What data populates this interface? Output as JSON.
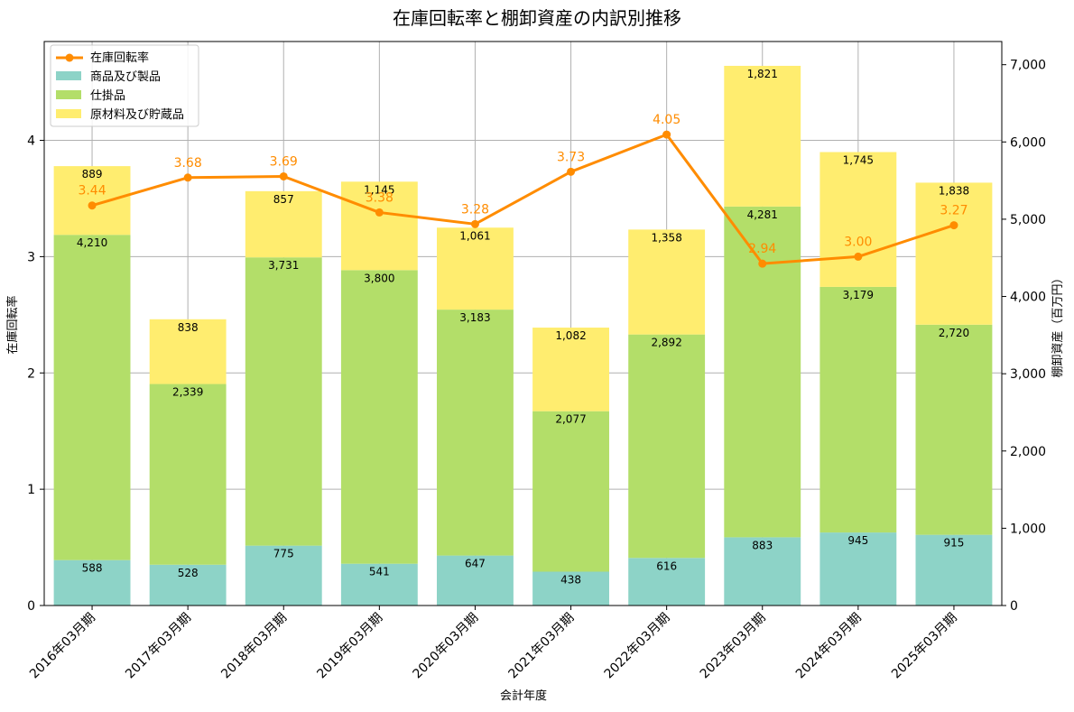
{
  "chart_data": {
    "type": "bar",
    "title": "在庫回転率と棚卸資産の内訳別推移",
    "xlabel": "会計年度",
    "ylabel_left": "在庫回転率",
    "ylabel_right": "棚卸資産（百万円）",
    "ylim_left": [
      0,
      4.85
    ],
    "ylim_right": [
      0,
      7300
    ],
    "yticks_left": [
      0,
      1,
      2,
      3,
      4
    ],
    "yticks_right": [
      0,
      1000,
      2000,
      3000,
      4000,
      5000,
      6000,
      7000
    ],
    "ytick_labels_right": [
      "0",
      "1,000",
      "2,000",
      "3,000",
      "4,000",
      "5,000",
      "6,000",
      "7,000"
    ],
    "categories": [
      "2016年03月期",
      "2017年03月期",
      "2018年03月期",
      "2019年03月期",
      "2020年03月期",
      "2021年03月期",
      "2022年03月期",
      "2023年03月期",
      "2024年03月期",
      "2025年03月期"
    ],
    "series": [
      {
        "name": "商品及び製品",
        "kind": "bar",
        "color": "#8dd3c7",
        "values": [
          588,
          528,
          775,
          541,
          647,
          438,
          616,
          883,
          945,
          915
        ],
        "labels": [
          "588",
          "528",
          "775",
          "541",
          "647",
          "438",
          "616",
          "883",
          "945",
          "915"
        ]
      },
      {
        "name": "仕掛品",
        "kind": "bar",
        "color": "#b3de69",
        "values": [
          4210,
          2339,
          3731,
          3800,
          3183,
          2077,
          2892,
          4281,
          3179,
          2720
        ],
        "labels": [
          "4,210",
          "2,339",
          "3,731",
          "3,800",
          "3,183",
          "2,077",
          "2,892",
          "4,281",
          "3,179",
          "2,720"
        ]
      },
      {
        "name": "原材料及び貯蔵品",
        "kind": "bar",
        "color": "#ffed6f",
        "values": [
          889,
          838,
          857,
          1145,
          1061,
          1082,
          1358,
          1821,
          1745,
          1838
        ],
        "labels": [
          "889",
          "838",
          "857",
          "1,145",
          "1,061",
          "1,082",
          "1,358",
          "1,821",
          "1,745",
          "1,838"
        ]
      },
      {
        "name": "在庫回転率",
        "kind": "line",
        "color": "#ff8c00",
        "values": [
          3.44,
          3.68,
          3.69,
          3.38,
          3.28,
          3.73,
          4.05,
          2.94,
          3.0,
          3.27
        ],
        "labels": [
          "3.44",
          "3.68",
          "3.69",
          "3.38",
          "3.28",
          "3.73",
          "4.05",
          "2.94",
          "3.00",
          "3.27"
        ]
      }
    ],
    "legend": [
      "在庫回転率",
      "商品及び製品",
      "仕掛品",
      "原材料及び貯蔵品"
    ],
    "legend_position": "top-left",
    "grid": true
  }
}
